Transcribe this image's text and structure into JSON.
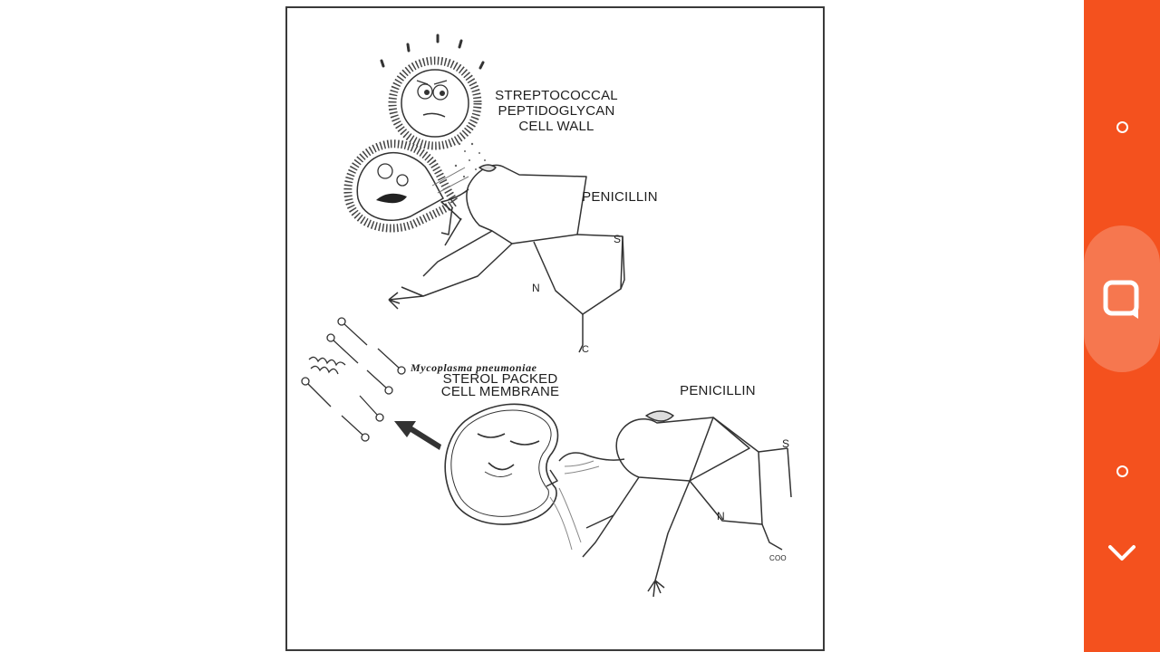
{
  "figure": {
    "labels": {
      "streptococcal_line1": "STREPTOCOCCAL",
      "streptococcal_line2": "PEPTIDOGLYCAN",
      "streptococcal_line3": "CELL WALL",
      "penicillin_top": "PENICILLIN",
      "penicillin_bottom": "PENICILLIN",
      "mycoplasma": "Mycoplasma pneumoniae",
      "sterol_line1": "STEROL PACKED",
      "sterol_line2": "CELL MEMBRANE",
      "atom_s_top": "S",
      "atom_n_top": "N",
      "atom_c_top": "C",
      "atom_s_bottom": "S",
      "atom_n_bottom": "N",
      "atom_coo_bottom": "COO"
    }
  },
  "side_bar": {
    "color": "#f4511e",
    "buttons": [
      {
        "name": "circle-icon"
      },
      {
        "name": "chat-icon"
      },
      {
        "name": "circle-icon"
      },
      {
        "name": "chevron-down-icon"
      }
    ]
  }
}
